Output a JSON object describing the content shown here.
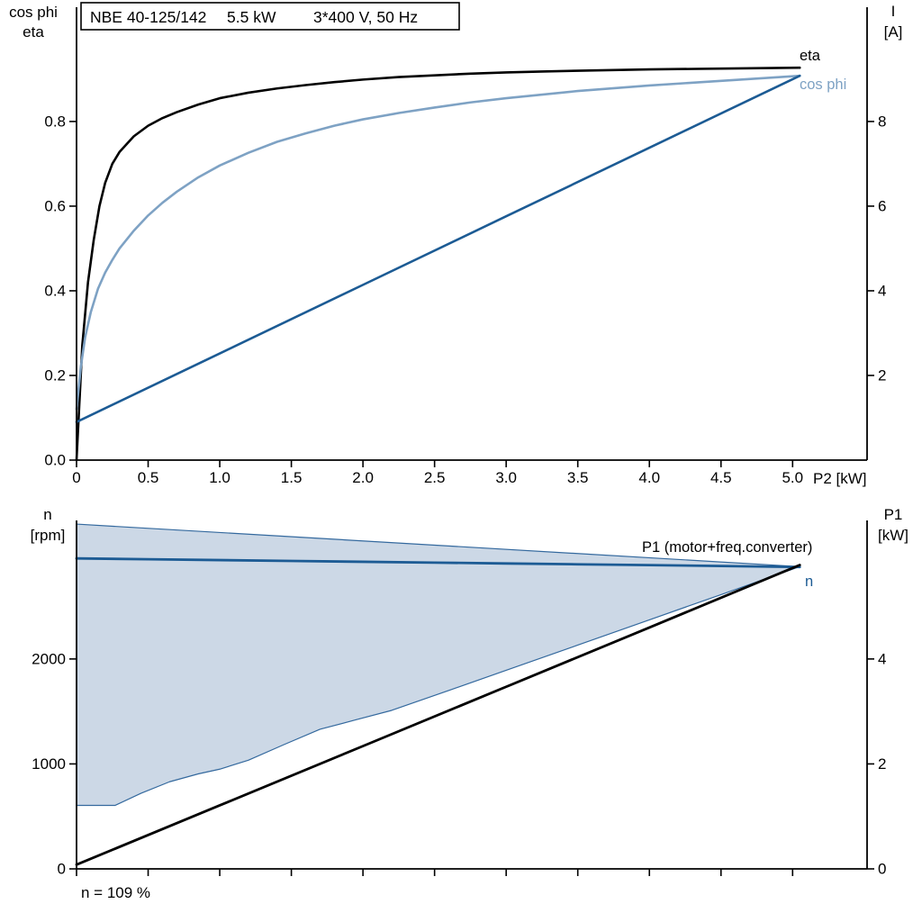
{
  "colors": {
    "black": "#000000",
    "dark_blue": "#1c5b94",
    "light_blue": "#7ea2c4",
    "area_fill": "#ccd8e6",
    "area_stroke": "#34699e"
  },
  "chart_data": [
    {
      "type": "line",
      "title_model": "NBE 40-125/142",
      "title_power": "5.5 kW",
      "title_voltage": "3*400 V, 50 Hz",
      "x": {
        "min": 0,
        "max": 5.52,
        "ticks": [
          0,
          0.5,
          1,
          1.5,
          2,
          2.5,
          3,
          3.5,
          4,
          4.5,
          5
        ],
        "tick_labels": [
          "0",
          "0.5",
          "1.0",
          "1.5",
          "2.0",
          "2.5",
          "3.0",
          "3.5",
          "4.0",
          "4.5",
          "5.0"
        ],
        "unit_label": "P2 [kW]"
      },
      "y_left": {
        "label_lines": [
          "cos phi",
          "eta"
        ],
        "min": 0,
        "max": 1.07,
        "ticks": [
          0,
          0.2,
          0.4,
          0.6,
          0.8
        ],
        "tick_labels": [
          "0.0",
          "0.2",
          "0.4",
          "0.6",
          "0.8"
        ]
      },
      "y_right": {
        "label_lines": [
          "I",
          "[A]"
        ],
        "min": 0,
        "max": 10.7,
        "ticks": [
          2,
          4,
          6,
          8
        ],
        "tick_labels": [
          "2",
          "4",
          "6",
          "8"
        ]
      },
      "series": [
        {
          "name": "eta",
          "label": "eta",
          "color": "#000000",
          "width": 2.6,
          "axis": "left",
          "points": [
            [
              0,
              0
            ],
            [
              0.04,
              0.27
            ],
            [
              0.08,
              0.42
            ],
            [
              0.12,
              0.52
            ],
            [
              0.16,
              0.6
            ],
            [
              0.2,
              0.655
            ],
            [
              0.25,
              0.7
            ],
            [
              0.3,
              0.728
            ],
            [
              0.4,
              0.765
            ],
            [
              0.5,
              0.79
            ],
            [
              0.6,
              0.808
            ],
            [
              0.7,
              0.822
            ],
            [
              0.85,
              0.84
            ],
            [
              1.0,
              0.855
            ],
            [
              1.2,
              0.868
            ],
            [
              1.4,
              0.878
            ],
            [
              1.6,
              0.886
            ],
            [
              1.8,
              0.893
            ],
            [
              2.0,
              0.899
            ],
            [
              2.25,
              0.905
            ],
            [
              2.5,
              0.909
            ],
            [
              2.75,
              0.913
            ],
            [
              3.0,
              0.916
            ],
            [
              3.25,
              0.918
            ],
            [
              3.5,
              0.92
            ],
            [
              4.0,
              0.923
            ],
            [
              4.5,
              0.925
            ],
            [
              5.05,
              0.927
            ]
          ]
        },
        {
          "name": "cos-phi",
          "label": "cos phi",
          "color": "#7ea2c4",
          "width": 2.6,
          "axis": "left",
          "points": [
            [
              0,
              0.12
            ],
            [
              0.03,
              0.22
            ],
            [
              0.06,
              0.29
            ],
            [
              0.1,
              0.35
            ],
            [
              0.15,
              0.405
            ],
            [
              0.2,
              0.443
            ],
            [
              0.25,
              0.473
            ],
            [
              0.3,
              0.5
            ],
            [
              0.4,
              0.542
            ],
            [
              0.5,
              0.578
            ],
            [
              0.6,
              0.608
            ],
            [
              0.7,
              0.634
            ],
            [
              0.85,
              0.668
            ],
            [
              1.0,
              0.696
            ],
            [
              1.2,
              0.726
            ],
            [
              1.4,
              0.752
            ],
            [
              1.6,
              0.772
            ],
            [
              1.8,
              0.79
            ],
            [
              2.0,
              0.805
            ],
            [
              2.25,
              0.82
            ],
            [
              2.5,
              0.833
            ],
            [
              2.75,
              0.845
            ],
            [
              3.0,
              0.855
            ],
            [
              3.5,
              0.872
            ],
            [
              4.0,
              0.885
            ],
            [
              4.5,
              0.896
            ],
            [
              5.05,
              0.908
            ]
          ]
        },
        {
          "name": "current",
          "label": "",
          "color": "#1c5b94",
          "width": 2.6,
          "axis": "right",
          "points": [
            [
              0,
              0.9
            ],
            [
              1,
              2.52
            ],
            [
              2,
              4.14
            ],
            [
              3,
              5.76
            ],
            [
              4,
              7.38
            ],
            [
              5.05,
              9.08
            ]
          ]
        }
      ]
    },
    {
      "type": "line+area",
      "x": {
        "min": 0,
        "max": 5.52,
        "ticks": [
          0,
          0.5,
          1,
          1.5,
          2,
          2.5,
          3,
          3.5,
          4,
          4.5,
          5
        ],
        "tick_labels": [],
        "unit_label": ""
      },
      "y_left": {
        "label_lines": [
          "n",
          "[rpm]"
        ],
        "min": 0,
        "max": 3320,
        "ticks": [
          0,
          1000,
          2000
        ],
        "tick_labels": [
          "0",
          "1000",
          "2000"
        ]
      },
      "y_right": {
        "label_lines": [
          "P1",
          "[kW]"
        ],
        "min": 0,
        "max": 6.64,
        "ticks": [
          0,
          2,
          4
        ],
        "tick_labels": [
          "0",
          "2",
          "4"
        ]
      },
      "area": {
        "name": "operating-range",
        "fill": "#ccd8e6",
        "stroke": "#34699e",
        "upper": [
          [
            0,
            3285
          ],
          [
            5.05,
            2880
          ]
        ],
        "lower": [
          [
            0,
            605
          ],
          [
            0.27,
            605
          ],
          [
            0.45,
            720
          ],
          [
            0.65,
            830
          ],
          [
            0.85,
            905
          ],
          [
            1.0,
            950
          ],
          [
            1.2,
            1035
          ],
          [
            1.45,
            1185
          ],
          [
            1.7,
            1330
          ],
          [
            1.95,
            1420
          ],
          [
            2.2,
            1510
          ],
          [
            2.6,
            1700
          ],
          [
            3.0,
            1892
          ],
          [
            3.5,
            2132
          ],
          [
            4.0,
            2373
          ],
          [
            4.5,
            2613
          ],
          [
            5.05,
            2880
          ]
        ]
      },
      "series": [
        {
          "name": "speed",
          "label": "n",
          "color": "#1c5b94",
          "width": 2.8,
          "axis": "left",
          "points": [
            [
              0,
              2958
            ],
            [
              0.5,
              2950
            ],
            [
              1,
              2942
            ],
            [
              1.5,
              2934
            ],
            [
              2,
              2926
            ],
            [
              2.5,
              2918
            ],
            [
              3,
              2910
            ],
            [
              3.5,
              2902
            ],
            [
              4,
              2894
            ],
            [
              4.5,
              2886
            ],
            [
              5.05,
              2876
            ]
          ]
        },
        {
          "name": "p1",
          "label": "P1 (motor+freq.converter)",
          "color": "#000000",
          "width": 2.8,
          "axis": "right",
          "points": [
            [
              0,
              0.08
            ],
            [
              1,
              1.21
            ],
            [
              2,
              2.34
            ],
            [
              3,
              3.47
            ],
            [
              4,
              4.6
            ],
            [
              5.05,
              5.79
            ]
          ]
        }
      ],
      "footnote": "n = 109 %"
    }
  ]
}
